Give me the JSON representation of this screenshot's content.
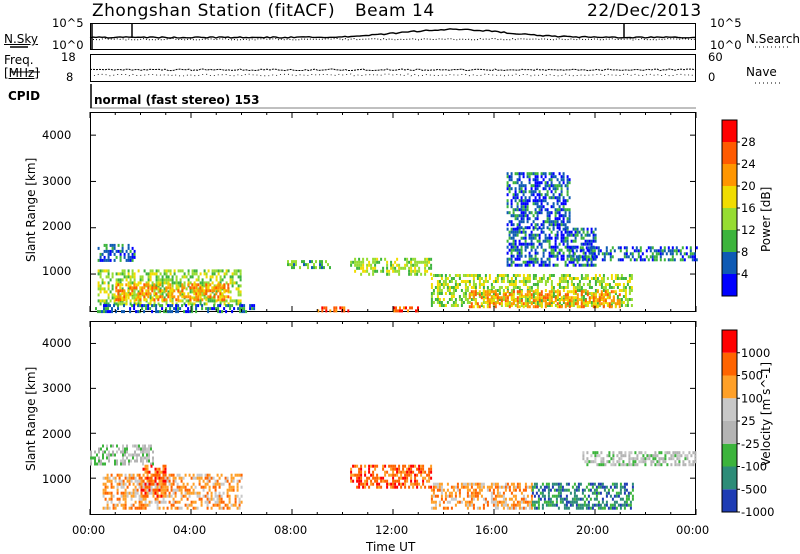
{
  "header": {
    "station": "Zhongshan Station (fitACF)",
    "beam": "Beam 14",
    "date": "22/Dec/2013"
  },
  "sky_panel": {
    "left_label": "N.Sky",
    "right_label": "N.Search",
    "left_ticks": [
      "10^5",
      "10^0"
    ],
    "right_ticks": [
      "10^5",
      "10^0"
    ]
  },
  "freq_panel": {
    "left_label_1": "Freq.",
    "left_label_2": "[MHz]",
    "right_label": "Nave",
    "left_ticks": [
      "18",
      "8"
    ],
    "right_ticks": [
      "60",
      "0"
    ]
  },
  "cpid": {
    "label": "CPID",
    "text": "normal (fast stereo) 153"
  },
  "chart_data": [
    {
      "type": "heatmap",
      "title": "",
      "xlabel": "Time UT",
      "ylabel": "Slant Range [km]",
      "x_ticks": [
        "00:00",
        "04:00",
        "08:00",
        "12:00",
        "16:00",
        "20:00",
        "00:00"
      ],
      "y_ticks": [
        "4000",
        "3000",
        "2000",
        "1000"
      ],
      "xlim": [
        0,
        24
      ],
      "ylim": [
        180,
        4500
      ],
      "colorbar": {
        "label": "Power [dB]",
        "ticks": [
          "28",
          "24",
          "20",
          "16",
          "12",
          "8",
          "4"
        ],
        "colors": [
          "#0000ff",
          "#0e5ab4",
          "#3cb43c",
          "#96dc32",
          "#f0dc00",
          "#ff9600",
          "#ff5a00",
          "#ff0000"
        ]
      },
      "regions": [
        {
          "t0": 0.3,
          "t1": 1.8,
          "r0": 1300,
          "r1": 1650,
          "level": 1
        },
        {
          "t0": 0.3,
          "t1": 6.0,
          "r0": 350,
          "r1": 1100,
          "level": 3
        },
        {
          "t0": 1.0,
          "t1": 5.5,
          "r0": 450,
          "r1": 800,
          "level": 5
        },
        {
          "t0": 0.2,
          "t1": 6.5,
          "r0": 220,
          "r1": 350,
          "level": 1
        },
        {
          "t0": 7.8,
          "t1": 9.5,
          "r0": 1150,
          "r1": 1300,
          "level": 2
        },
        {
          "t0": 9.0,
          "t1": 10.2,
          "r0": 200,
          "r1": 300,
          "level": 6
        },
        {
          "t0": 10.3,
          "t1": 13.5,
          "r0": 1000,
          "r1": 1350,
          "level": 3
        },
        {
          "t0": 12.0,
          "t1": 13.0,
          "r0": 200,
          "r1": 300,
          "level": 6
        },
        {
          "t0": 13.5,
          "t1": 21.5,
          "r0": 300,
          "r1": 1000,
          "level": 3
        },
        {
          "t0": 15.0,
          "t1": 21.0,
          "r0": 300,
          "r1": 650,
          "level": 5
        },
        {
          "t0": 16.5,
          "t1": 20.0,
          "r0": 1200,
          "r1": 2000,
          "level": 1
        },
        {
          "t0": 16.5,
          "t1": 19.0,
          "r0": 2000,
          "r1": 3200,
          "level": 1
        },
        {
          "t0": 19.0,
          "t1": 24.0,
          "r0": 1300,
          "r1": 1600,
          "level": 1
        }
      ]
    },
    {
      "type": "heatmap",
      "title": "",
      "xlabel": "Time UT",
      "ylabel": "Slant Range [km]",
      "x_ticks": [
        "00:00",
        "04:00",
        "08:00",
        "12:00",
        "16:00",
        "20:00",
        "00:00"
      ],
      "y_ticks": [
        "4000",
        "3000",
        "2000",
        "1000"
      ],
      "xlim": [
        0,
        24
      ],
      "ylim": [
        180,
        4500
      ],
      "colorbar": {
        "label": "Velocity [m s^-1]",
        "ticks": [
          "1000",
          "500",
          "100",
          "25",
          "-25",
          "-100",
          "-500",
          "-1000"
        ],
        "colors": [
          "#1e3cb4",
          "#2d8c78",
          "#3cb43c",
          "#b4b4b4",
          "#c8c8c8",
          "#ffa028",
          "#ff6400",
          "#ff0000"
        ]
      },
      "regions": [
        {
          "t0": 0.0,
          "t1": 2.5,
          "r0": 1300,
          "r1": 1750,
          "level": 3
        },
        {
          "t0": 0.5,
          "t1": 6.0,
          "r0": 300,
          "r1": 1100,
          "level": 5
        },
        {
          "t0": 2.0,
          "t1": 3.0,
          "r0": 600,
          "r1": 1300,
          "level": 6
        },
        {
          "t0": 10.3,
          "t1": 13.5,
          "r0": 800,
          "r1": 1300,
          "level": 6
        },
        {
          "t0": 13.5,
          "t1": 17.5,
          "r0": 300,
          "r1": 900,
          "level": 5
        },
        {
          "t0": 17.5,
          "t1": 21.5,
          "r0": 300,
          "r1": 900,
          "level": 1
        },
        {
          "t0": 19.5,
          "t1": 24.0,
          "r0": 1300,
          "r1": 1600,
          "level": 3
        }
      ]
    }
  ]
}
